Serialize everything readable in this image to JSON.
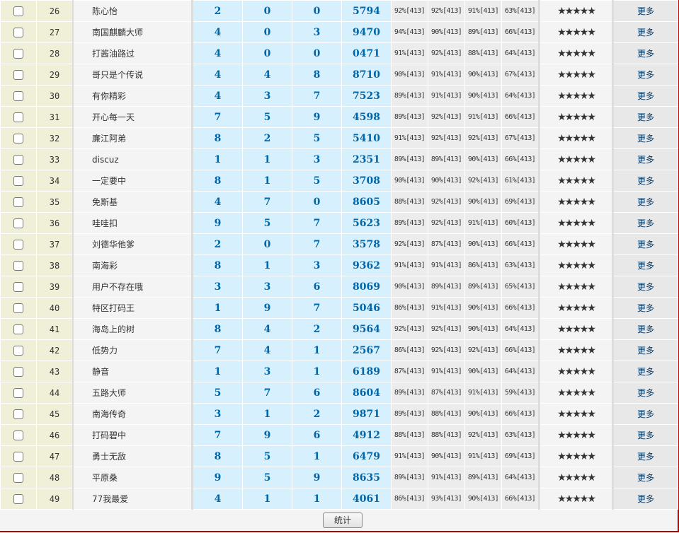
{
  "rows": [
    {
      "id": "26",
      "name": "陈心怡",
      "d": [
        "2",
        "0",
        "0",
        "5794"
      ],
      "pct": [
        "92%[413]",
        "92%[413]",
        "91%[413]",
        "63%[413]"
      ]
    },
    {
      "id": "27",
      "name": "南国麒麟大师",
      "d": [
        "4",
        "0",
        "3",
        "9470"
      ],
      "pct": [
        "94%[413]",
        "90%[413]",
        "89%[413]",
        "66%[413]"
      ]
    },
    {
      "id": "28",
      "name": "打酱油路过",
      "d": [
        "4",
        "0",
        "0",
        "0471"
      ],
      "pct": [
        "91%[413]",
        "92%[413]",
        "88%[413]",
        "64%[413]"
      ]
    },
    {
      "id": "29",
      "name": "哥只是个传说",
      "d": [
        "4",
        "4",
        "8",
        "8710"
      ],
      "pct": [
        "90%[413]",
        "91%[413]",
        "90%[413]",
        "67%[413]"
      ]
    },
    {
      "id": "30",
      "name": "有你精彩",
      "d": [
        "4",
        "3",
        "7",
        "7523"
      ],
      "pct": [
        "89%[413]",
        "91%[413]",
        "90%[413]",
        "64%[413]"
      ]
    },
    {
      "id": "31",
      "name": "开心每一天",
      "d": [
        "7",
        "5",
        "9",
        "4598"
      ],
      "pct": [
        "89%[413]",
        "92%[413]",
        "91%[413]",
        "66%[413]"
      ]
    },
    {
      "id": "32",
      "name": "廉江阿弟",
      "d": [
        "8",
        "2",
        "5",
        "5410"
      ],
      "pct": [
        "91%[413]",
        "92%[413]",
        "92%[413]",
        "67%[413]"
      ]
    },
    {
      "id": "33",
      "name": "discuz",
      "d": [
        "1",
        "1",
        "3",
        "2351"
      ],
      "pct": [
        "89%[413]",
        "89%[413]",
        "90%[413]",
        "66%[413]"
      ]
    },
    {
      "id": "34",
      "name": "一定要中",
      "d": [
        "8",
        "1",
        "5",
        "3708"
      ],
      "pct": [
        "90%[413]",
        "90%[413]",
        "92%[413]",
        "61%[413]"
      ]
    },
    {
      "id": "35",
      "name": "免斯基",
      "d": [
        "4",
        "7",
        "0",
        "8605"
      ],
      "pct": [
        "88%[413]",
        "92%[413]",
        "90%[413]",
        "69%[413]"
      ]
    },
    {
      "id": "36",
      "name": "哇哇扣",
      "d": [
        "9",
        "5",
        "7",
        "5623"
      ],
      "pct": [
        "89%[413]",
        "92%[413]",
        "91%[413]",
        "60%[413]"
      ]
    },
    {
      "id": "37",
      "name": "刘德华他爹",
      "d": [
        "2",
        "0",
        "7",
        "3578"
      ],
      "pct": [
        "92%[413]",
        "87%[413]",
        "90%[413]",
        "66%[413]"
      ]
    },
    {
      "id": "38",
      "name": "南海彩",
      "d": [
        "8",
        "1",
        "3",
        "9362"
      ],
      "pct": [
        "91%[413]",
        "91%[413]",
        "86%[413]",
        "63%[413]"
      ]
    },
    {
      "id": "39",
      "name": "用户不存在哦",
      "d": [
        "3",
        "3",
        "6",
        "8069"
      ],
      "pct": [
        "90%[413]",
        "89%[413]",
        "89%[413]",
        "65%[413]"
      ]
    },
    {
      "id": "40",
      "name": "特区打码王",
      "d": [
        "1",
        "9",
        "7",
        "5046"
      ],
      "pct": [
        "86%[413]",
        "91%[413]",
        "90%[413]",
        "66%[413]"
      ]
    },
    {
      "id": "41",
      "name": "海岛上的树",
      "d": [
        "8",
        "4",
        "2",
        "9564"
      ],
      "pct": [
        "92%[413]",
        "92%[413]",
        "90%[413]",
        "64%[413]"
      ]
    },
    {
      "id": "42",
      "name": "低势力",
      "d": [
        "7",
        "4",
        "1",
        "2567"
      ],
      "pct": [
        "86%[413]",
        "92%[413]",
        "92%[413]",
        "66%[413]"
      ]
    },
    {
      "id": "43",
      "name": "静音",
      "d": [
        "1",
        "3",
        "1",
        "6189"
      ],
      "pct": [
        "87%[413]",
        "91%[413]",
        "90%[413]",
        "64%[413]"
      ]
    },
    {
      "id": "44",
      "name": "五路大师",
      "d": [
        "5",
        "7",
        "6",
        "8604"
      ],
      "pct": [
        "89%[413]",
        "87%[413]",
        "91%[413]",
        "59%[413]"
      ]
    },
    {
      "id": "45",
      "name": "南海传奇",
      "d": [
        "3",
        "1",
        "2",
        "9871"
      ],
      "pct": [
        "89%[413]",
        "88%[413]",
        "90%[413]",
        "66%[413]"
      ]
    },
    {
      "id": "46",
      "name": "打码碧中",
      "d": [
        "7",
        "9",
        "6",
        "4912"
      ],
      "pct": [
        "88%[413]",
        "88%[413]",
        "92%[413]",
        "63%[413]"
      ]
    },
    {
      "id": "47",
      "name": "勇士无敌",
      "d": [
        "8",
        "5",
        "1",
        "6479"
      ],
      "pct": [
        "91%[413]",
        "90%[413]",
        "91%[413]",
        "69%[413]"
      ]
    },
    {
      "id": "48",
      "name": "平原桑",
      "d": [
        "9",
        "5",
        "9",
        "8635"
      ],
      "pct": [
        "89%[413]",
        "91%[413]",
        "89%[413]",
        "64%[413]"
      ]
    },
    {
      "id": "49",
      "name": "77我最爱",
      "d": [
        "4",
        "1",
        "1",
        "4061"
      ],
      "pct": [
        "86%[413]",
        "93%[413]",
        "90%[413]",
        "66%[413]"
      ]
    }
  ],
  "stars": "★★★★★",
  "rating_stars": 5,
  "more_label": "更多",
  "footer": {
    "stat_button": "统计"
  },
  "colors": {
    "digit": "#0066aa",
    "more_link": "#003a6c",
    "frame_border": "#c00000"
  }
}
